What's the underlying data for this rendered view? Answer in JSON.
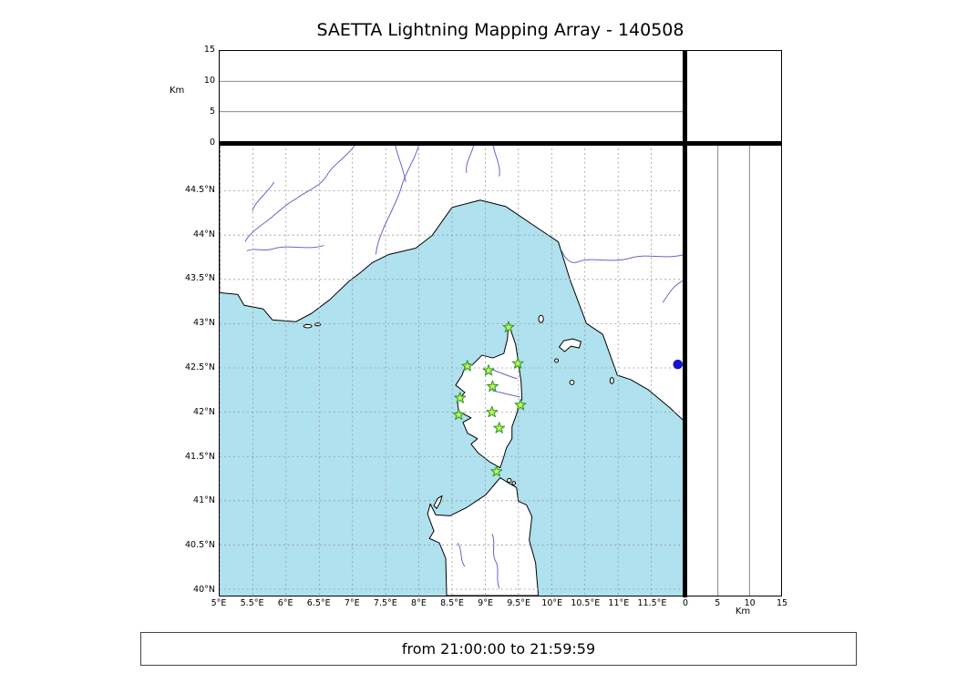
{
  "title": "SAETTA Lightning Mapping Array - 140508",
  "footer": {
    "text": "from 21:00:00 to 21:59:59"
  },
  "axes": {
    "alt_label_top": "Km",
    "alt_label_right": "Km",
    "alt_ticks": [
      "0",
      "5",
      "10",
      "15"
    ],
    "lon_ticks": [
      "5°E",
      "5.5°E",
      "6°E",
      "6.5°E",
      "7°E",
      "7.5°E",
      "8°E",
      "8.5°E",
      "9°E",
      "9.5°E",
      "10°E",
      "10.5°E",
      "11°E",
      "11.5°E"
    ],
    "lat_ticks": [
      "40°N",
      "40.5°N",
      "41°N",
      "41.5°N",
      "42°N",
      "42.5°N",
      "43°N",
      "43.5°N",
      "44°N",
      "44.5°N"
    ]
  },
  "chart_data": [
    {
      "type": "scatter",
      "panel": "altitude-vs-longitude",
      "xlim": [
        5,
        12
      ],
      "ylim": [
        0,
        15
      ],
      "ylabel": "Km",
      "yticks": [
        0,
        5,
        10,
        15
      ],
      "gridlines_km": [
        5,
        10
      ],
      "points": []
    },
    {
      "type": "scatter",
      "panel": "map-longitude-latitude",
      "lon_lim": [
        5,
        12
      ],
      "lat_lim": [
        39.93,
        45.03
      ],
      "lon_gridlines": [
        5,
        5.5,
        6,
        6.5,
        7,
        7.5,
        8,
        8.5,
        9,
        9.5,
        10,
        10.5,
        11,
        11.5
      ],
      "lat_gridlines": [
        40,
        40.5,
        41,
        41.5,
        42,
        42.5,
        43,
        43.5,
        44,
        44.5
      ],
      "station_marker": "star",
      "station_fill": "#c9ef55",
      "station_stroke": "#2e9e2e",
      "stations": [
        {
          "lon": 9.35,
          "lat": 42.96
        },
        {
          "lon": 8.73,
          "lat": 42.52
        },
        {
          "lon": 9.05,
          "lat": 42.47
        },
        {
          "lon": 9.49,
          "lat": 42.55
        },
        {
          "lon": 9.11,
          "lat": 42.29
        },
        {
          "lon": 8.62,
          "lat": 42.16
        },
        {
          "lon": 8.6,
          "lat": 41.97
        },
        {
          "lon": 9.1,
          "lat": 42.0
        },
        {
          "lon": 9.53,
          "lat": 42.08
        },
        {
          "lon": 9.21,
          "lat": 41.82
        },
        {
          "lon": 9.17,
          "lat": 41.33
        }
      ],
      "event_points": [
        {
          "lon": 11.9,
          "lat": 42.54,
          "alt_km": 0,
          "color": "#1414cc"
        }
      ],
      "sea_color": "#b0e1ef",
      "land_color": "#ffffff",
      "river_color": "#6666cc"
    },
    {
      "type": "scatter",
      "panel": "altitude-vs-latitude",
      "xlim": [
        0,
        15
      ],
      "xticks": [
        0,
        5,
        10,
        15
      ],
      "xlabel": "Km",
      "gridlines_km": [
        5,
        10
      ],
      "points": []
    }
  ]
}
